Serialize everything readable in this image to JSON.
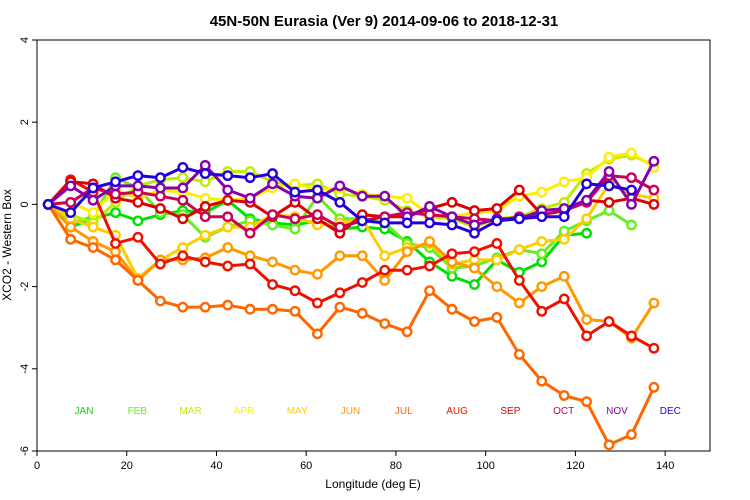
{
  "chart_data": {
    "type": "line",
    "title": "45N-50N Eurasia (Ver 9)   2014-09-06 to 2018-12-31",
    "xlabel": "Longitude (deg E)",
    "ylabel": "XCO2 - Western Box",
    "xlim": [
      0,
      150
    ],
    "ylim": [
      -6,
      4
    ],
    "xticks": [
      0,
      20,
      40,
      60,
      80,
      100,
      120,
      140
    ],
    "yticks": [
      -6,
      -4,
      -2,
      0,
      2,
      4
    ],
    "grid": false,
    "legend": "bottom-row",
    "x": [
      2.5,
      7.5,
      12.5,
      17.5,
      22.5,
      27.5,
      32.5,
      37.5,
      42.5,
      47.5,
      52.5,
      57.5,
      62.5,
      67.5,
      72.5,
      77.5,
      82.5,
      87.5,
      92.5,
      97.5,
      102.5,
      107.5,
      112.5,
      117.5,
      122.5,
      127.5,
      132.5,
      137.5
    ],
    "series": [
      {
        "name": "JAN",
        "color": "#00e000",
        "values": [
          0,
          -0.55,
          -0.35,
          -0.2,
          -0.4,
          -0.25,
          -0.15,
          -0.2,
          0.1,
          -0.35,
          -0.45,
          -0.5,
          -0.4,
          -0.6,
          -0.55,
          -0.6,
          -0.9,
          -1.4,
          -1.75,
          -1.95,
          -1.35,
          -1.65,
          -1.4,
          -0.75,
          -0.7,
          null,
          null,
          null
        ]
      },
      {
        "name": "FEB",
        "color": "#66ee22",
        "values": [
          0,
          -0.45,
          -0.3,
          0.65,
          0.4,
          -0.2,
          -0.25,
          -0.8,
          -0.55,
          -0.4,
          -0.5,
          -0.6,
          0.2,
          -0.35,
          -0.35,
          -0.45,
          -0.95,
          -1.05,
          -1.55,
          -1.5,
          -1.3,
          -1.1,
          -1.2,
          -0.65,
          -0.4,
          -0.15,
          -0.5,
          null
        ]
      },
      {
        "name": "MAR",
        "color": "#bbee00",
        "values": [
          0,
          -0.25,
          -0.45,
          0.05,
          0.45,
          0.6,
          0.65,
          0.55,
          0.8,
          0.8,
          0.55,
          0.45,
          0.5,
          0.25,
          0.2,
          0.1,
          -0.15,
          -0.3,
          -0.35,
          -0.55,
          -0.35,
          -0.3,
          -0.1,
          0.05,
          0.75,
          1.1,
          1.2,
          0.95
        ]
      },
      {
        "name": "APR",
        "color": "#ffee00",
        "values": [
          0,
          0.05,
          -0.2,
          0.35,
          0.15,
          0.35,
          0.3,
          0.15,
          0.1,
          0.15,
          0.4,
          0.5,
          0.35,
          0.4,
          0.25,
          0.2,
          0.15,
          -0.25,
          -0.3,
          -0.2,
          -0.15,
          0.2,
          0.3,
          0.55,
          0.65,
          1.15,
          1.25,
          0.9
        ]
      },
      {
        "name": "MAY",
        "color": "#ffcc00",
        "values": [
          0,
          -0.35,
          -0.55,
          -0.75,
          -1.8,
          -1.35,
          -1.05,
          -0.75,
          -0.55,
          -0.55,
          -0.25,
          -0.3,
          -0.5,
          -0.45,
          -0.35,
          -1.25,
          -1.05,
          -0.95,
          -1.45,
          -1.35,
          -1.35,
          -1.1,
          -0.9,
          -0.85,
          -0.35,
          0.5,
          0.25,
          0.15
        ]
      },
      {
        "name": "JUN",
        "color": "#ff9900",
        "values": [
          0,
          -0.55,
          -0.9,
          -1.15,
          -1.85,
          -1.35,
          -1.35,
          -1.3,
          -1.05,
          -1.25,
          -1.4,
          -1.6,
          -1.7,
          -1.25,
          -1.25,
          -1.85,
          -1.15,
          -0.9,
          -1.4,
          -1.55,
          -2.0,
          -2.4,
          -2.0,
          -1.75,
          -2.8,
          -2.85,
          -3.25,
          -2.4
        ]
      },
      {
        "name": "JUL",
        "color": "#ff6600",
        "values": [
          0,
          -0.85,
          -1.05,
          -1.35,
          -1.85,
          -2.35,
          -2.5,
          -2.5,
          -2.45,
          -2.55,
          -2.55,
          -2.6,
          -3.15,
          -2.5,
          -2.65,
          -2.9,
          -3.1,
          -2.1,
          -2.55,
          -2.85,
          -2.75,
          -3.65,
          -4.3,
          -4.65,
          -4.8,
          -5.85,
          -5.6,
          -4.45
        ]
      },
      {
        "name": "AUG",
        "color": "#ee1100",
        "values": [
          0,
          0.6,
          0.3,
          -0.95,
          -0.8,
          -1.45,
          -1.25,
          -1.4,
          -1.5,
          -1.45,
          -1.95,
          -2.1,
          -2.4,
          -2.15,
          -1.9,
          -1.6,
          -1.6,
          -1.5,
          -1.2,
          -1.15,
          -0.95,
          -1.85,
          -2.6,
          -2.3,
          -3.2,
          -2.85,
          -3.2,
          -3.5
        ]
      },
      {
        "name": "SEP",
        "color": "#dd0000",
        "values": [
          0,
          0.55,
          0.5,
          0.15,
          0.05,
          -0.1,
          -0.35,
          -0.05,
          0.1,
          0.05,
          -0.3,
          0.05,
          -0.35,
          -0.7,
          -0.25,
          -0.3,
          -0.3,
          -0.1,
          0.05,
          -0.15,
          -0.1,
          0.35,
          -0.25,
          -0.15,
          0.1,
          0.05,
          0.15,
          0.0
        ]
      },
      {
        "name": "OCT",
        "color": "#cc0055",
        "values": [
          0,
          0.05,
          0.4,
          0.25,
          0.3,
          0.2,
          0.1,
          -0.3,
          -0.3,
          -0.7,
          -0.25,
          -0.35,
          -0.25,
          -0.55,
          -0.4,
          -0.3,
          -0.2,
          -0.25,
          -0.3,
          -0.35,
          -0.4,
          -0.3,
          -0.25,
          -0.15,
          0.05,
          0.7,
          0.65,
          0.35
        ]
      },
      {
        "name": "NOV",
        "color": "#8800aa",
        "values": [
          0,
          0.45,
          0.1,
          0.45,
          0.45,
          0.4,
          0.4,
          0.95,
          0.35,
          0.15,
          0.5,
          0.2,
          0.15,
          0.45,
          0.2,
          0.2,
          -0.3,
          -0.05,
          -0.3,
          -0.5,
          -0.35,
          -0.35,
          -0.15,
          -0.1,
          0.1,
          0.8,
          0.0,
          1.05
        ]
      },
      {
        "name": "DEC",
        "color": "#2200dd",
        "values": [
          0,
          -0.2,
          0.4,
          0.55,
          0.7,
          0.65,
          0.9,
          0.75,
          0.7,
          0.65,
          0.75,
          0.3,
          0.35,
          0.05,
          -0.4,
          -0.45,
          -0.45,
          -0.45,
          -0.5,
          -0.7,
          -0.4,
          -0.35,
          -0.3,
          -0.3,
          0.5,
          0.45,
          0.35,
          null
        ]
      }
    ]
  }
}
